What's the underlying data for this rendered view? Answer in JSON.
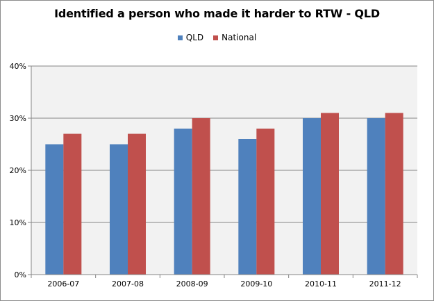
{
  "chart_data": {
    "type": "bar",
    "title": "Identified a person who made it harder to RTW - QLD",
    "xlabel": "",
    "ylabel": "",
    "categories": [
      "2006-07",
      "2007-08",
      "2008-09",
      "2009-10",
      "2010-11",
      "2011-12"
    ],
    "series": [
      {
        "name": "QLD",
        "color": "#4f81bd",
        "values": [
          25,
          25,
          28,
          26,
          30,
          30
        ]
      },
      {
        "name": "National",
        "color": "#c0504d",
        "values": [
          27,
          27,
          30,
          28,
          31,
          31
        ]
      }
    ],
    "ylim": [
      0,
      40
    ],
    "yticks": [
      0,
      10,
      20,
      30,
      40
    ],
    "ytick_labels": [
      "0%",
      "10%",
      "20%",
      "30%",
      "40%"
    ],
    "grid": true,
    "legend_position": "top",
    "plot_background": "#f2f2f2"
  }
}
